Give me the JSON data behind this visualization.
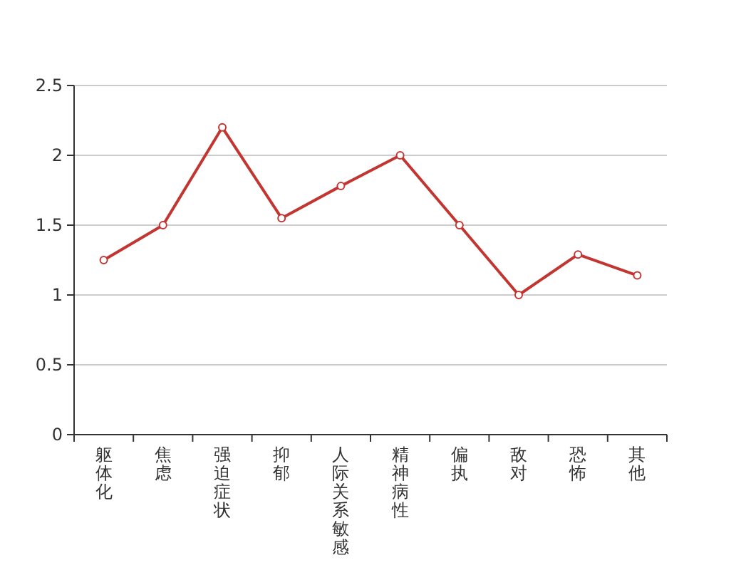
{
  "chart_data": {
    "type": "line",
    "categories": [
      "躯体化",
      "焦虑",
      "强迫症状",
      "抑郁",
      "人际关系敏感",
      "精神病性",
      "偏执",
      "敌对",
      "恐怖",
      "其他"
    ],
    "series": [
      {
        "color": "#c23531",
        "values": [
          1.25,
          1.5,
          2.2,
          1.55,
          1.78,
          2.0,
          1.5,
          1.0,
          1.29,
          1.14
        ]
      }
    ],
    "ylim": [
      0,
      2.5
    ],
    "yticks": [
      0,
      0.5,
      1,
      1.5,
      2,
      2.5
    ],
    "grid": "y",
    "marker": "circle",
    "line_style": "solid"
  }
}
